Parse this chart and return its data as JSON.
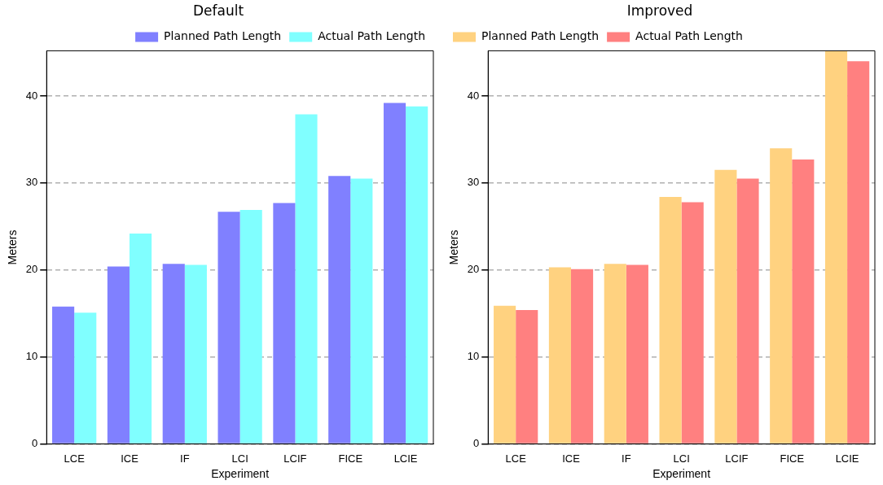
{
  "chart_data": [
    {
      "type": "bar",
      "title": "Default",
      "xlabel": "Experiment",
      "ylabel": "Meters",
      "categories": [
        "LCE",
        "ICE",
        "IF",
        "LCI",
        "LCIF",
        "FICE",
        "LCIE"
      ],
      "series": [
        {
          "name": "Planned Path Length",
          "color": "#8080ff",
          "values": [
            15.8,
            20.4,
            20.7,
            26.7,
            27.7,
            30.8,
            39.2
          ]
        },
        {
          "name": "Actual Path Length",
          "color": "#80ffff",
          "values": [
            15.1,
            24.2,
            20.6,
            26.9,
            37.9,
            30.5,
            38.8
          ]
        }
      ],
      "ylim": [
        0,
        45.2
      ],
      "yticks": [
        0,
        10,
        20,
        30,
        40
      ],
      "grid": "y",
      "legend": "top right"
    },
    {
      "type": "bar",
      "title": "Improved",
      "xlabel": "Experiment",
      "ylabel": "Meters",
      "categories": [
        "LCE",
        "ICE",
        "IF",
        "LCI",
        "LCIF",
        "FICE",
        "LCIE"
      ],
      "series": [
        {
          "name": "Planned Path Length",
          "color": "#ffd280",
          "values": [
            15.9,
            20.3,
            20.7,
            28.4,
            31.5,
            34.0,
            45.2
          ]
        },
        {
          "name": "Actual Path Length",
          "color": "#ff8080",
          "values": [
            15.4,
            20.1,
            20.6,
            27.8,
            30.5,
            32.7,
            44.0
          ]
        }
      ],
      "ylim": [
        0,
        45.2
      ],
      "yticks": [
        0,
        10,
        20,
        30,
        40
      ],
      "grid": "y",
      "legend": "top left"
    }
  ]
}
